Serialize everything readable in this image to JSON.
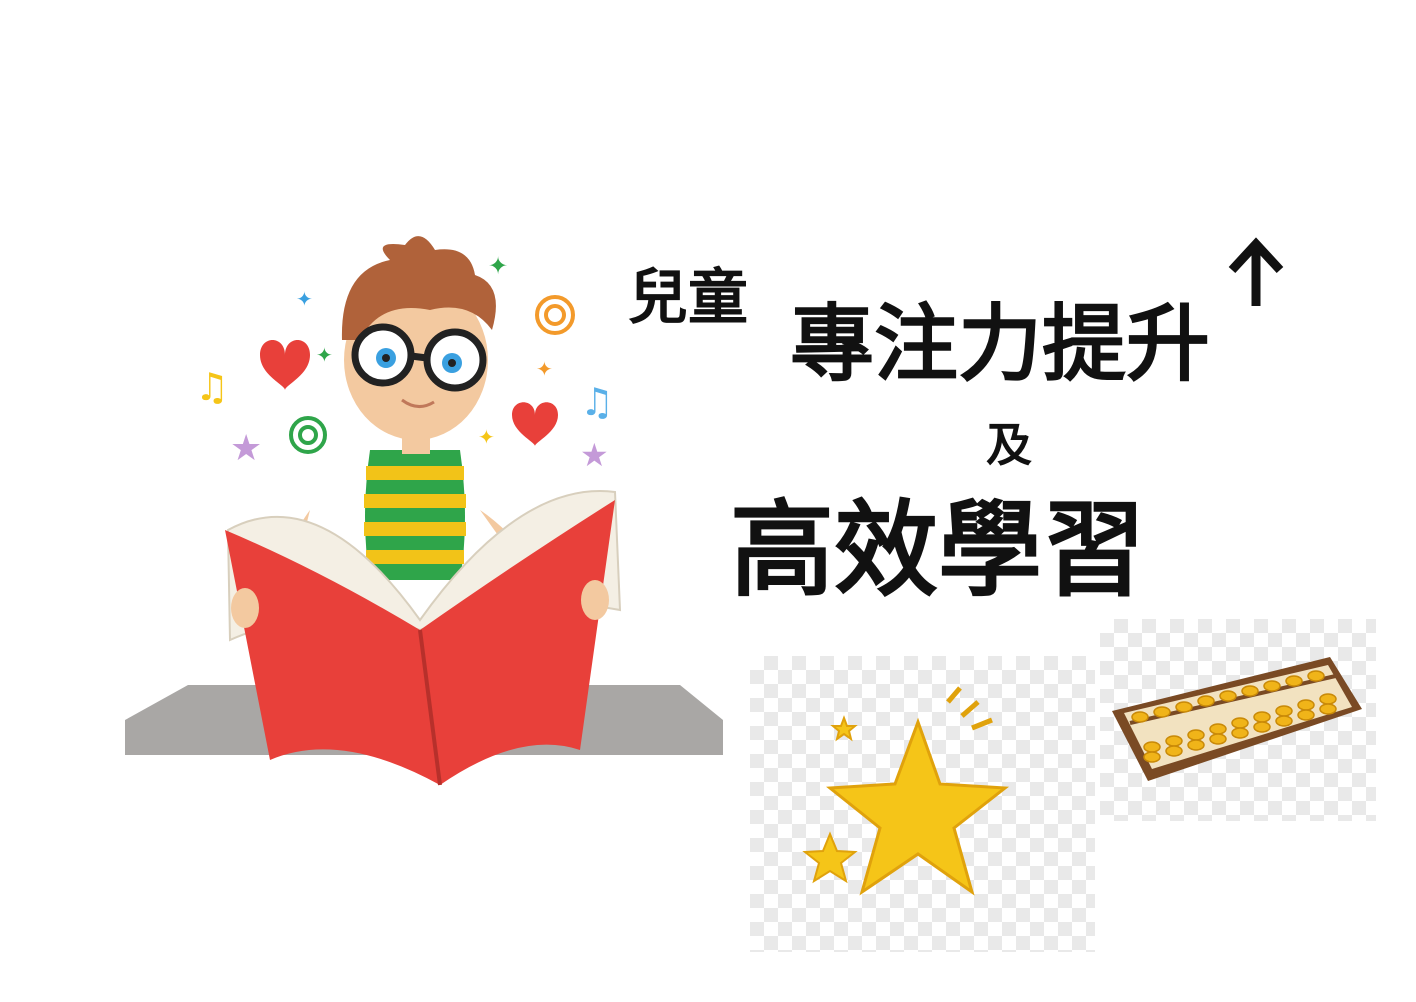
{
  "title": {
    "line1_small": "兒童",
    "line1_large": "專注力提升",
    "connector": "及",
    "line2": "高效學習"
  },
  "colors": {
    "text": "#111111",
    "book_red": "#e8403a",
    "shelf_gray": "#a9a7a5",
    "star_yellow": "#f5c518",
    "hair_brown": "#b0623a",
    "abacus_wood": "#7a4a24"
  },
  "illustrations": {
    "boy": "boy-reading-book-illustration",
    "star": "shooting-star-illustration",
    "abacus": "abacus-illustration",
    "arrow": "up-arrow-icon"
  }
}
